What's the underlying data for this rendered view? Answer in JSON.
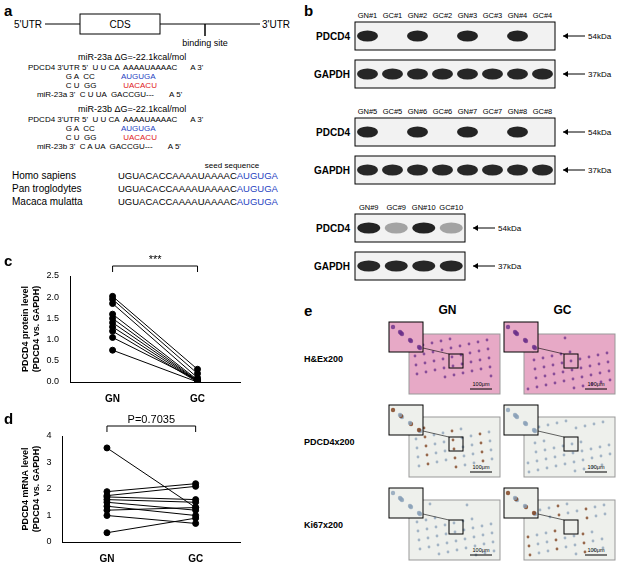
{
  "panel_a": {
    "letter": "a",
    "schematic": {
      "left": "5'UTR",
      "box": "CDS",
      "site": "binding site",
      "right": "3'UTR"
    },
    "alignments": [
      {
        "title": "miR-23a ΔG=-22.1kcal/mol",
        "rows": [
          [
            {
              "text": "PDCD4 3'UTR 5'  U U CA  AAAAUAAAAC      A 3'",
              "color": "#000000"
            }
          ],
          [
            {
              "text": "                 G A  CC            ",
              "color": "#000000"
            },
            {
              "text": "AUGUGA",
              "color": "#1f3fbf"
            }
          ],
          [
            {
              "text": "                 C U  GG            ",
              "color": "#000000"
            },
            {
              "text": "UACACU",
              "color": "#e0201b"
            }
          ],
          [
            {
              "text": "    miR-23a 3'  C U UA  GACCGU---       A 5'",
              "color": "#000000"
            }
          ]
        ]
      },
      {
        "title": "miR-23b ΔG=-22.1kcal/mol",
        "rows": [
          [
            {
              "text": "PDCD4 3'UTR 5'  U U CA  AAAAUAAAAC      A 3'",
              "color": "#000000"
            }
          ],
          [
            {
              "text": "                 G A  CC            ",
              "color": "#000000"
            },
            {
              "text": "AUGUGA",
              "color": "#1f3fbf"
            }
          ],
          [
            {
              "text": "                 C U  GG            ",
              "color": "#000000"
            },
            {
              "text": "UACACU",
              "color": "#e0201b"
            }
          ],
          [
            {
              "text": "    miR-23b 3'  C A UA  GACCGU---       A 5'",
              "color": "#000000"
            }
          ]
        ]
      }
    ],
    "seed_label": "seed sequence",
    "seed_color": "#1f3fbf",
    "conservation": [
      {
        "species": "Homo sapiens",
        "seq": "UGUACACCAAAAUAAAAC",
        "seed": "AUGUGA"
      },
      {
        "species": "Pan troglodytes",
        "seq": "UGUACACCAAAAUAAAAC",
        "seed": "AUGUGA"
      },
      {
        "species": "Macaca mulatta",
        "seq": "UGUACACCAAAAUAAAAC",
        "seed": "AUGUGA"
      }
    ]
  },
  "panel_b": {
    "letter": "b",
    "groups": [
      {
        "lanes": [
          "GN#1",
          "GC#1",
          "GN#2",
          "GC#2",
          "GN#3",
          "GC#3",
          "GN#4",
          "GC#4"
        ],
        "proteins": [
          {
            "name": "PDCD4",
            "size": "54kDa"
          },
          {
            "name": "GAPDH",
            "size": "37kDa"
          }
        ]
      },
      {
        "lanes": [
          "GN#5",
          "GC#5",
          "GN#6",
          "GC#6",
          "GN#7",
          "GC#7",
          "GN#8",
          "GC#8"
        ],
        "proteins": [
          {
            "name": "PDCD4",
            "size": "54kDa"
          },
          {
            "name": "GAPDH",
            "size": "37kDa"
          }
        ]
      },
      {
        "lanes": [
          "GN#9",
          "GC#9",
          "GN#10",
          "GC#10"
        ],
        "proteins": [
          {
            "name": "PDCD4",
            "size": "54kDa"
          },
          {
            "name": "GAPDH",
            "size": "37kDa"
          }
        ]
      }
    ]
  },
  "chart_data": [
    {
      "letter": "c",
      "type": "line",
      "categories": [
        "GN",
        "GC"
      ],
      "y_label": [
        "PDCD4 protein level",
        "(PDCD4 vs. GAPDH)"
      ],
      "annotation": "***",
      "ylim": [
        0,
        2.5
      ],
      "yticks": [
        {
          "value": 0,
          "label": "0.0"
        },
        0.5,
        {
          "value": 1,
          "label": "1.0"
        },
        1.5,
        {
          "value": 2,
          "label": "2.0"
        },
        2.5
      ],
      "grid": false,
      "color": "#000000",
      "marker": "circle",
      "series": [
        {
          "values": [
            2.02,
            0.3
          ]
        },
        {
          "values": [
            1.95,
            0.2
          ]
        },
        {
          "values": [
            1.85,
            0.1
          ]
        },
        {
          "values": [
            1.6,
            0.05
          ]
        },
        {
          "values": [
            1.5,
            0.03
          ]
        },
        {
          "values": [
            1.4,
            0.02
          ]
        },
        {
          "values": [
            1.3,
            0.01
          ]
        },
        {
          "values": [
            1.2,
            0.0
          ]
        },
        {
          "values": [
            1.05,
            0.05
          ]
        },
        {
          "values": [
            0.75,
            0.0
          ]
        }
      ]
    },
    {
      "letter": "d",
      "type": "line",
      "categories": [
        "GN",
        "GC"
      ],
      "y_label": [
        "PDCD4 mRNA level",
        "(PDCD4 vs. GAPDH)"
      ],
      "annotation": "P=0.7035",
      "ylim": [
        0,
        4
      ],
      "yticks": [
        0,
        1,
        2,
        3,
        4
      ],
      "grid": false,
      "color": "#000000",
      "marker": "circle",
      "series": [
        {
          "values": [
            3.55,
            1.3
          ]
        },
        {
          "values": [
            1.9,
            2.2
          ]
        },
        {
          "values": [
            1.75,
            2.1
          ]
        },
        {
          "values": [
            1.7,
            1.6
          ]
        },
        {
          "values": [
            1.6,
            1.5
          ]
        },
        {
          "values": [
            1.5,
            1.2
          ]
        },
        {
          "values": [
            1.35,
            1.0
          ]
        },
        {
          "values": [
            1.2,
            1.3
          ]
        },
        {
          "values": [
            1.0,
            0.7
          ]
        },
        {
          "values": [
            0.35,
            0.9
          ]
        }
      ]
    }
  ],
  "panel_e": {
    "letter": "e",
    "columns": [
      "GN",
      "GC"
    ],
    "rows": [
      "H&Ex200",
      "PDCD4x200",
      "Ki67x200"
    ],
    "scale_bar": "100μm"
  }
}
